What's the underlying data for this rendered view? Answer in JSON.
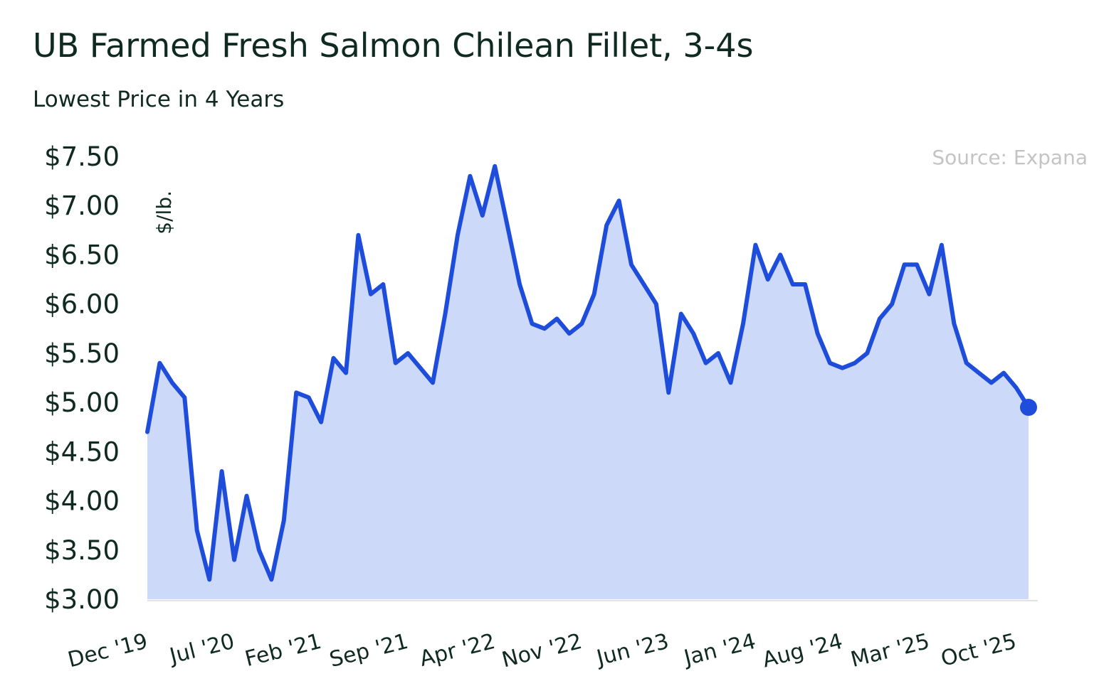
{
  "chart_data": {
    "type": "area",
    "title": "UB Farmed Fresh Salmon Chilean Fillet, 3-4s",
    "subtitle": "Lowest Price in 4 Years",
    "source": "Source: Expana",
    "y_label": "$/lb.",
    "color": "#1f4ddb",
    "fill": "#cdd9f8",
    "grid": false,
    "categories": [
      "Dec '19",
      null,
      null,
      null,
      null,
      null,
      null,
      "Jul '20",
      null,
      null,
      null,
      null,
      null,
      null,
      "Feb '21",
      null,
      null,
      null,
      null,
      null,
      null,
      "Sep '21",
      null,
      null,
      null,
      null,
      null,
      null,
      "Apr '22",
      null,
      null,
      null,
      null,
      null,
      null,
      "Nov '22",
      null,
      null,
      null,
      null,
      null,
      null,
      "Jun '23",
      null,
      null,
      null,
      null,
      null,
      null,
      "Jan '24",
      null,
      null,
      null,
      null,
      null,
      null,
      "Aug '24",
      null,
      null,
      null,
      null,
      null,
      null,
      "Mar '25",
      null,
      null,
      null,
      null,
      null,
      null,
      "Oct '25",
      null
    ],
    "values": [
      4.7,
      5.4,
      5.2,
      5.05,
      3.7,
      3.2,
      4.3,
      3.4,
      4.05,
      3.5,
      3.2,
      3.8,
      5.1,
      5.05,
      4.8,
      5.45,
      5.3,
      6.7,
      6.1,
      6.2,
      5.4,
      5.5,
      5.35,
      5.2,
      5.9,
      6.7,
      7.3,
      6.9,
      7.4,
      6.8,
      6.2,
      5.8,
      5.75,
      5.85,
      5.7,
      5.8,
      6.1,
      6.8,
      7.05,
      6.4,
      6.2,
      6.0,
      5.1,
      5.9,
      5.7,
      5.4,
      5.5,
      5.2,
      5.8,
      6.6,
      6.25,
      6.5,
      6.2,
      6.2,
      5.7,
      5.4,
      5.35,
      5.4,
      5.5,
      5.85,
      6.0,
      6.4,
      6.4,
      6.1,
      6.6,
      5.8,
      5.4,
      5.3,
      5.2,
      5.3,
      5.15,
      4.95
    ],
    "ylim": [
      3,
      7.5
    ],
    "yticks": [
      {
        "value": 3,
        "label": "$3.00"
      },
      {
        "value": 3.5,
        "label": "$3.50"
      },
      {
        "value": 4,
        "label": "$4.00"
      },
      {
        "value": 4.5,
        "label": "$4.50"
      },
      {
        "value": 5,
        "label": "$5.00"
      },
      {
        "value": 5.5,
        "label": "$5.50"
      },
      {
        "value": 6,
        "label": "$6.00"
      },
      {
        "value": 6.5,
        "label": "$6.50"
      },
      {
        "value": 7,
        "label": "$7.00"
      },
      {
        "value": 7.5,
        "label": "$7.50"
      }
    ]
  }
}
